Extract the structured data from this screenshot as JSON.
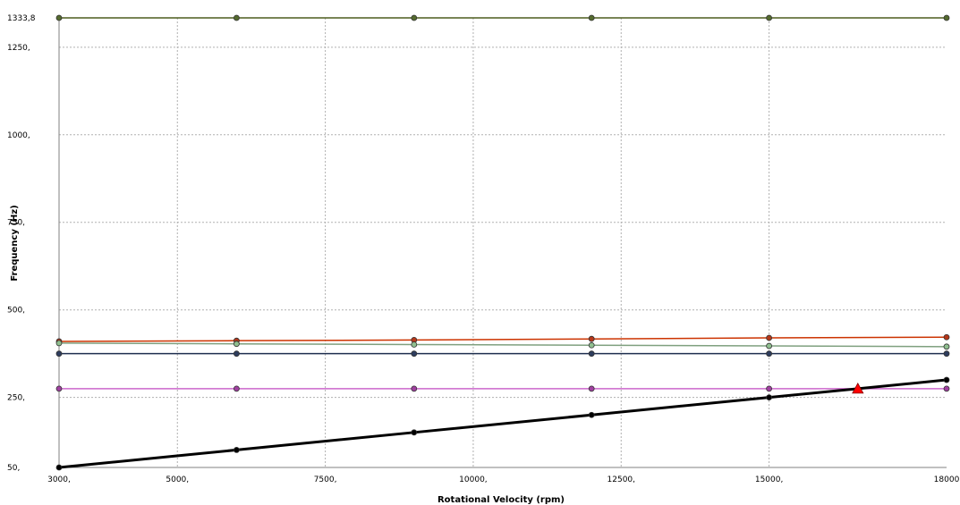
{
  "chart_data": {
    "type": "line",
    "xlabel": "Rotational Velocity (rpm)",
    "ylabel": "Frequency (Hz)",
    "xlim": [
      3000,
      18000
    ],
    "ylim": [
      50,
      1333.8
    ],
    "x_ticks": [
      3000,
      5000,
      7500,
      10000,
      12500,
      15000,
      18000
    ],
    "x_tick_labels": [
      "3000,",
      "5000,",
      "7500,",
      "10000,",
      "12500,",
      "15000,",
      "18000"
    ],
    "y_ticks": [
      50,
      250,
      500,
      750,
      1000,
      1250,
      1333.8
    ],
    "y_tick_labels": [
      "50,",
      "250,",
      "500,",
      "750,",
      "1000,",
      "1250,",
      "1333,8"
    ],
    "grid": true,
    "x": [
      3000,
      6000,
      9000,
      12000,
      15000,
      18000
    ],
    "series": [
      {
        "color": "#4d5d1e",
        "values": [
          1333.8,
          1333.8,
          1333.8,
          1333.8,
          1333.8,
          1333.8
        ],
        "marker_color": "#556b2f"
      },
      {
        "color": "#cc3300",
        "values": [
          410,
          412,
          414,
          417,
          420,
          422
        ],
        "marker_color": "#b5371a"
      },
      {
        "color": "#7fa07f",
        "values": [
          405,
          403,
          401,
          399,
          397,
          395
        ],
        "marker_color": "#8fbf8f"
      },
      {
        "color": "#1f2f4f",
        "values": [
          375,
          375,
          375,
          375,
          375,
          375
        ],
        "marker_color": "#2e3d5e"
      },
      {
        "color": "#cc66cc",
        "values": [
          275,
          275,
          275,
          275,
          275,
          275
        ],
        "marker_color": "#a040a0"
      },
      {
        "color": "#000000",
        "values": [
          50,
          100,
          150,
          200,
          250,
          300
        ],
        "marker_color": "#000000",
        "width": 3
      }
    ],
    "annotations": [
      {
        "type": "triangle-marker",
        "x": 16500,
        "y": 275,
        "color": "#ff0000"
      }
    ]
  }
}
